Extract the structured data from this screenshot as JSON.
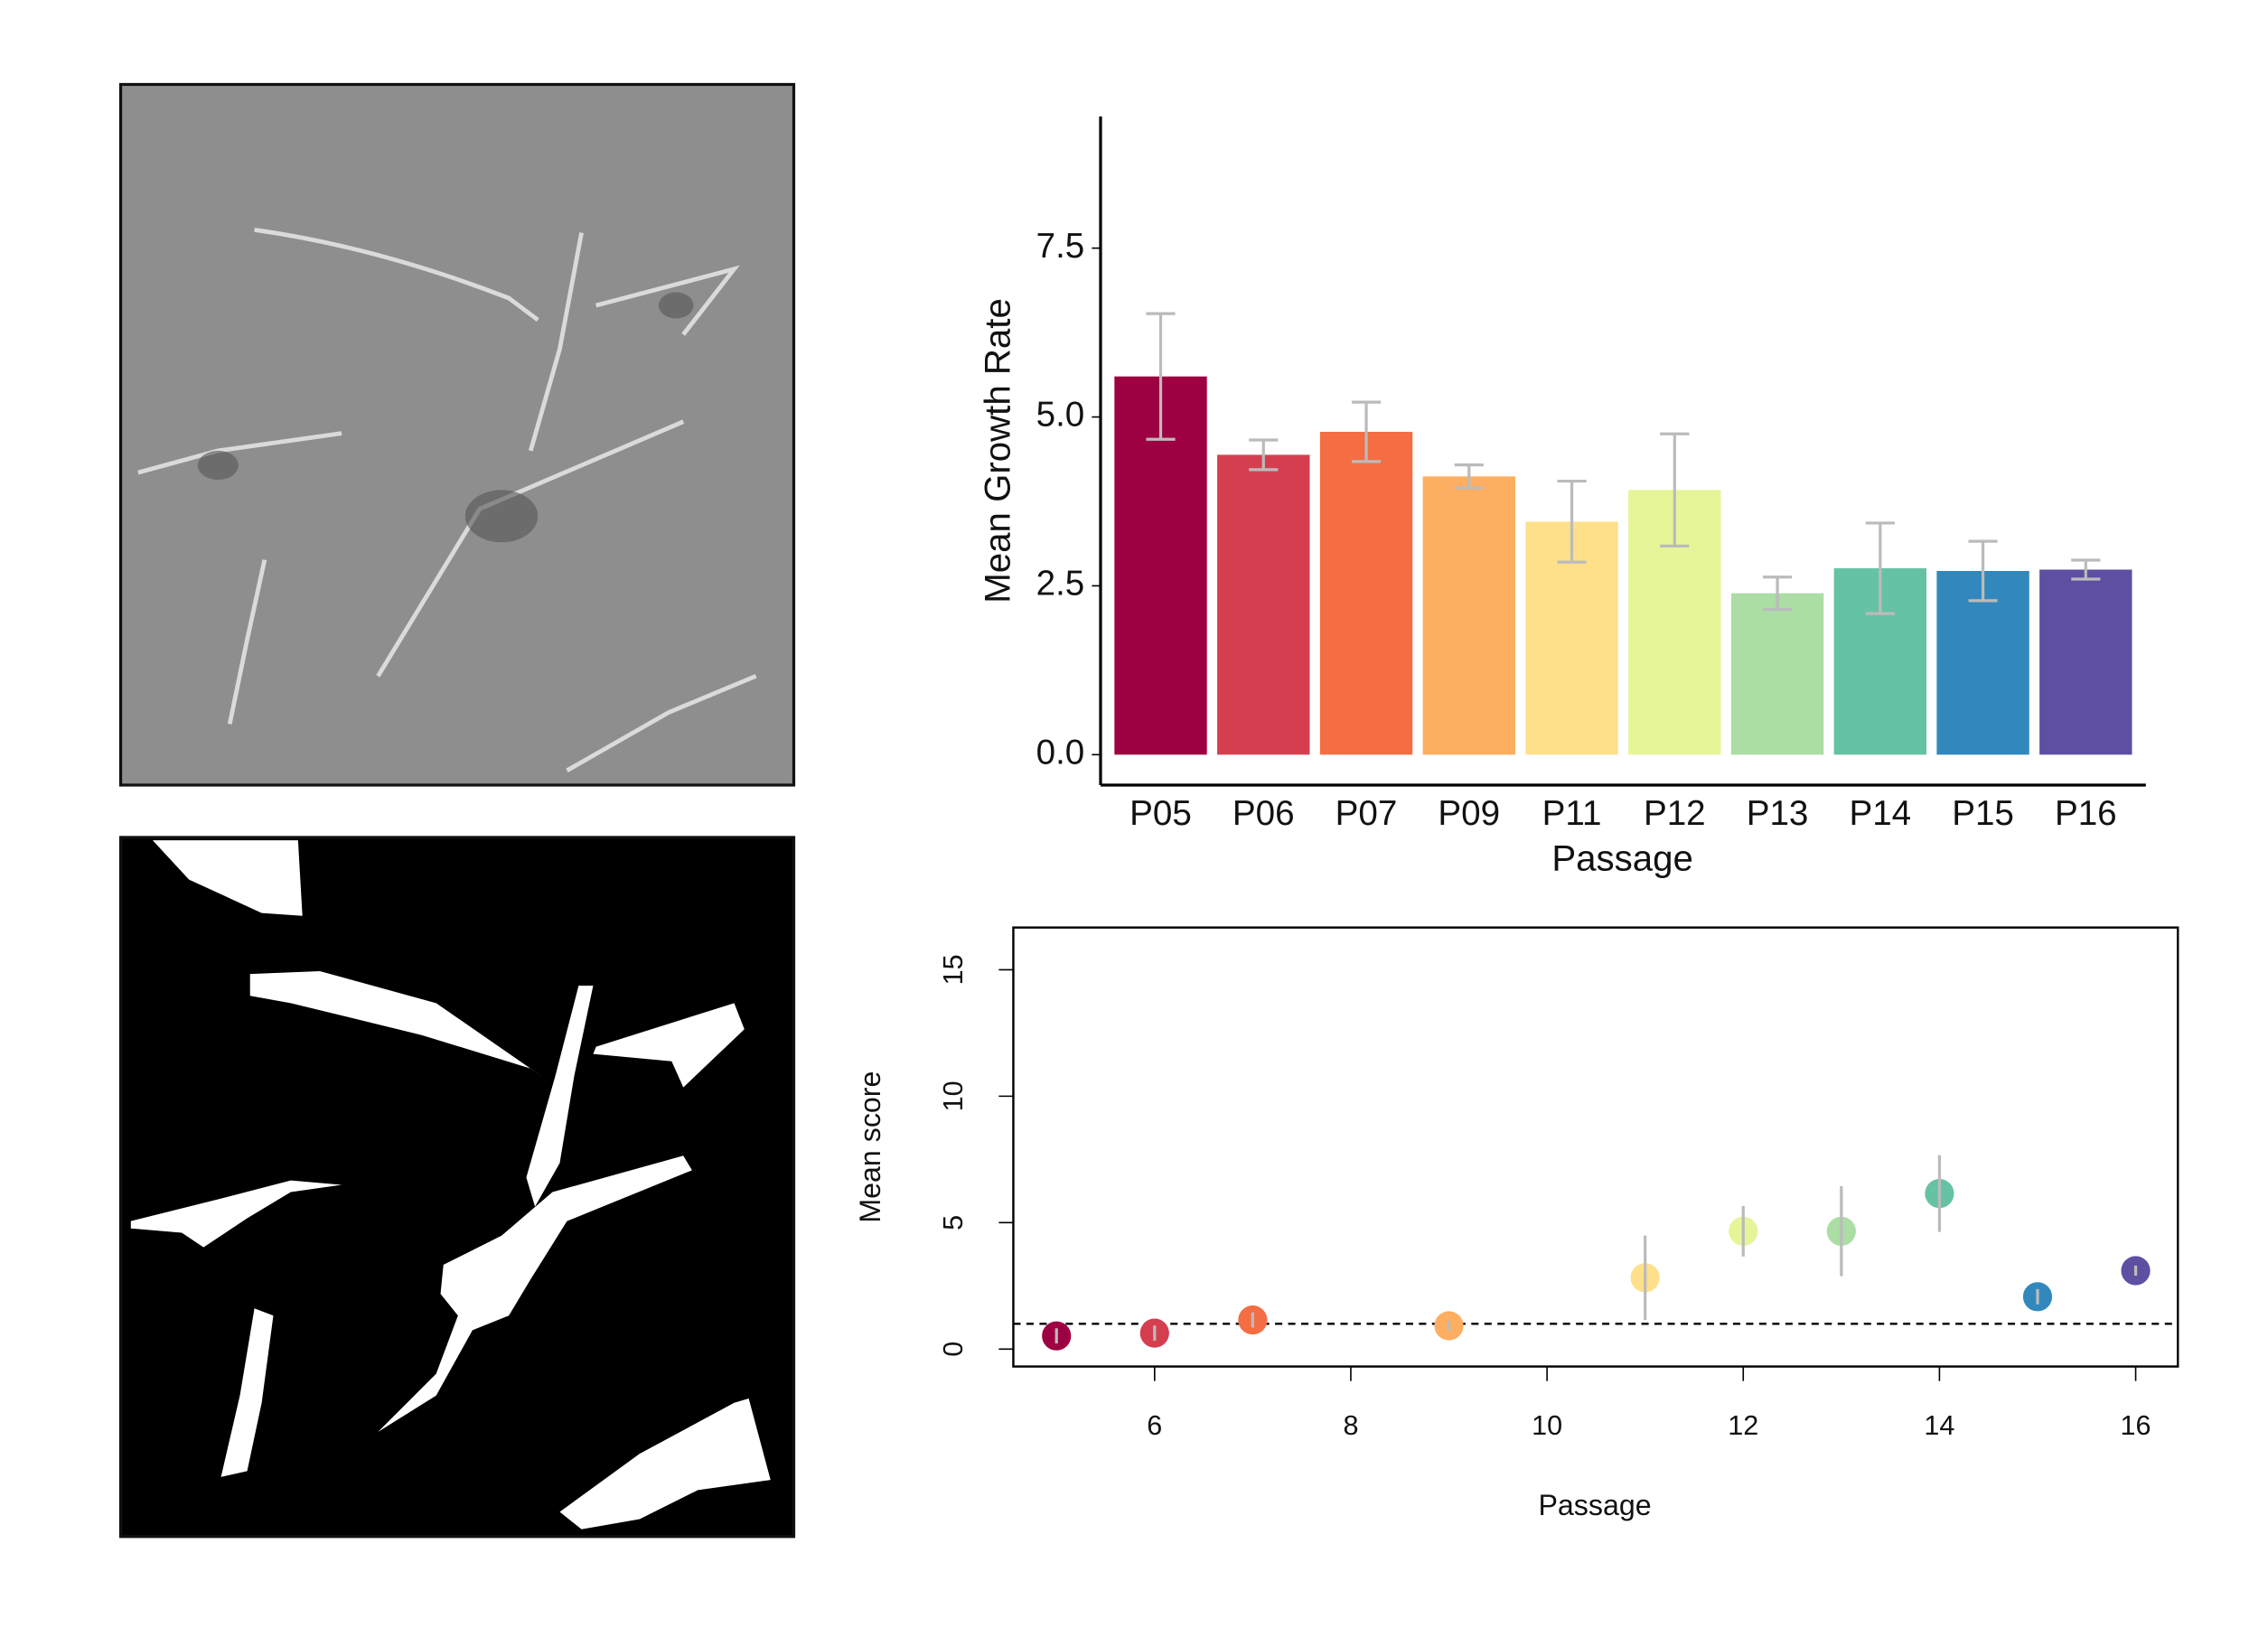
{
  "chart_data": [
    {
      "type": "bar",
      "categories": [
        "P05",
        "P06",
        "P07",
        "P09",
        "P11",
        "P12",
        "P13",
        "P14",
        "P15",
        "P16"
      ],
      "values": [
        5.6,
        4.44,
        4.78,
        4.12,
        3.45,
        3.92,
        2.39,
        2.76,
        2.72,
        2.74
      ],
      "errors": [
        0.93,
        0.22,
        0.44,
        0.17,
        0.6,
        0.83,
        0.24,
        0.67,
        0.44,
        0.14
      ],
      "colors": [
        "#9e0142",
        "#d53e4f",
        "#f46d43",
        "#fdae61",
        "#fee08b",
        "#e6f598",
        "#abdda4",
        "#66c2a5",
        "#3288bd",
        "#5e4fa2"
      ],
      "error_color": "#bbbbbb",
      "xlabel": "Passage",
      "ylabel": "Mean Growth Rate",
      "ylim": [
        -0.45,
        9.45
      ],
      "yticks": [
        {
          "value": 0,
          "label": "0.0"
        },
        2.5,
        {
          "value": 5,
          "label": "5.0"
        },
        7.5
      ]
    },
    {
      "type": "scatter",
      "x": [
        5,
        6,
        7,
        9,
        11,
        12,
        13,
        14,
        15,
        16
      ],
      "values": [
        0.52,
        0.63,
        1.15,
        0.92,
        2.82,
        4.66,
        4.66,
        6.15,
        2.07,
        3.1
      ],
      "errors": [
        0.3,
        0.3,
        0.3,
        0.2,
        1.67,
        1.0,
        1.78,
        1.52,
        0.3,
        0.2
      ],
      "colors": [
        "#9e0142",
        "#d53e4f",
        "#f46d43",
        "#fdae61",
        "#fee08b",
        "#e6f598",
        "#abdda4",
        "#66c2a5",
        "#3288bd",
        "#5e4fa2"
      ],
      "error_color": "#bbbbbb",
      "hline": 1,
      "xlabel": "Passage",
      "ylabel": "Mean score",
      "xlim": [
        4.56,
        16.43
      ],
      "ylim": [
        -0.69,
        16.67
      ],
      "xticks": [
        6,
        8,
        10,
        12,
        14,
        16
      ],
      "yticks": [
        0,
        5,
        10,
        15
      ]
    }
  ]
}
